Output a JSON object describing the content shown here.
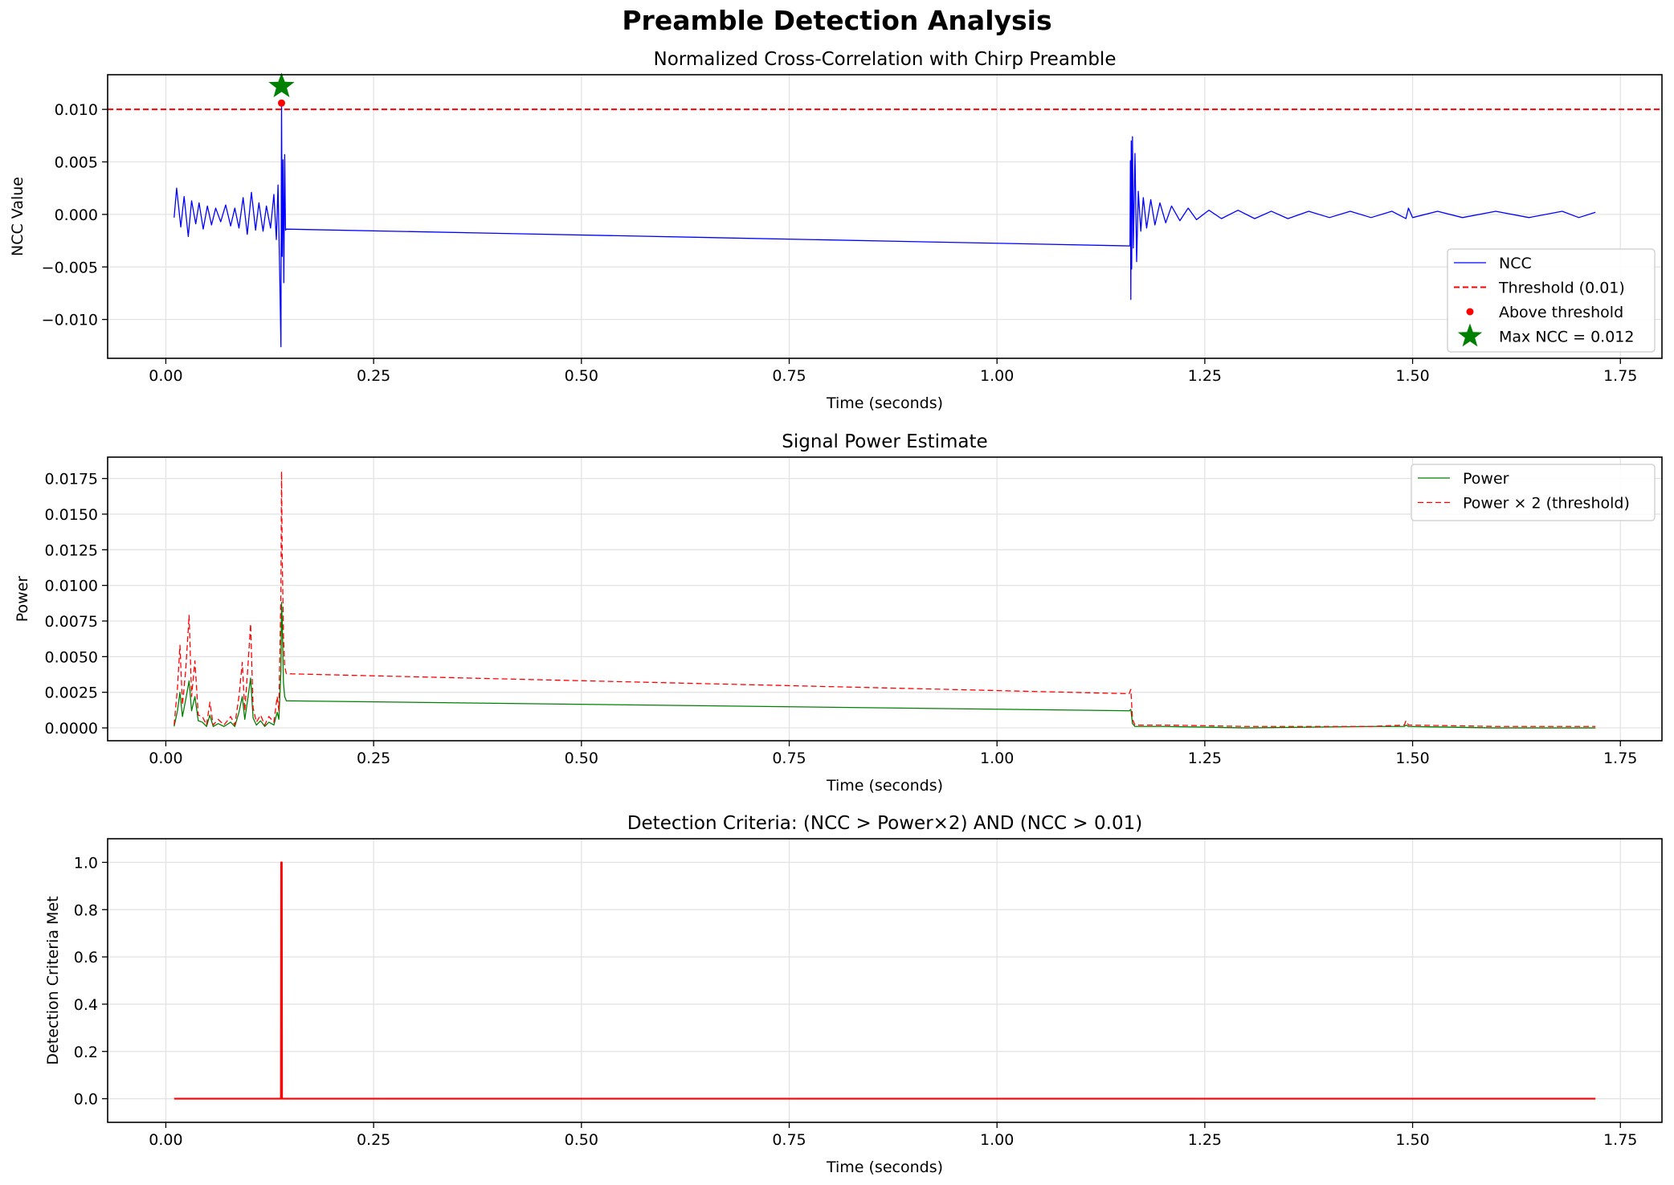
{
  "figure": {
    "title": "Preamble Detection Analysis"
  },
  "chart_data": [
    {
      "type": "line",
      "title": "Normalized Cross-Correlation with Chirp Preamble",
      "xlabel": "Time (seconds)",
      "ylabel": "NCC Value",
      "xlim": [
        -0.07,
        1.8
      ],
      "ylim": [
        -0.0137,
        0.0133
      ],
      "xticks": [
        0.0,
        0.25,
        0.5,
        0.75,
        1.0,
        1.25,
        1.5,
        1.75
      ],
      "xtick_labels": [
        "0.00",
        "0.25",
        "0.50",
        "0.75",
        "1.00",
        "1.25",
        "1.50",
        "1.75"
      ],
      "yticks": [
        -0.01,
        -0.005,
        0.0,
        0.005,
        0.01
      ],
      "ytick_labels": [
        "−0.010",
        "−0.005",
        "0.000",
        "0.005",
        "0.010"
      ],
      "grid": true,
      "legend_position": "lower-right",
      "series": [
        {
          "name": "NCC",
          "kind": "line",
          "color": "#0000ff",
          "points": [
            [
              0.01,
              -0.0003
            ],
            [
              0.013,
              0.0025
            ],
            [
              0.018,
              -0.0012
            ],
            [
              0.022,
              0.0017
            ],
            [
              0.027,
              -0.0021
            ],
            [
              0.031,
              0.0013
            ],
            [
              0.036,
              -0.0009
            ],
            [
              0.04,
              0.0011
            ],
            [
              0.045,
              -0.0014
            ],
            [
              0.05,
              0.0008
            ],
            [
              0.055,
              -0.001
            ],
            [
              0.06,
              0.0006
            ],
            [
              0.066,
              -0.0007
            ],
            [
              0.072,
              0.0009
            ],
            [
              0.078,
              -0.0011
            ],
            [
              0.083,
              0.0006
            ],
            [
              0.088,
              -0.0013
            ],
            [
              0.093,
              0.0016
            ],
            [
              0.098,
              -0.0019
            ],
            [
              0.103,
              0.0021
            ],
            [
              0.108,
              -0.0015
            ],
            [
              0.112,
              0.0011
            ],
            [
              0.117,
              -0.0016
            ],
            [
              0.121,
              0.0008
            ],
            [
              0.126,
              -0.0013
            ],
            [
              0.13,
              0.0019
            ],
            [
              0.133,
              -0.0024
            ],
            [
              0.135,
              0.0028
            ],
            [
              0.137,
              -0.0055
            ],
            [
              0.1385,
              -0.0126
            ],
            [
              0.1392,
              0.0108
            ],
            [
              0.14,
              -0.004
            ],
            [
              0.141,
              0.0052
            ],
            [
              0.142,
              -0.0065
            ],
            [
              0.143,
              0.0057
            ],
            [
              0.144,
              -0.0015
            ],
            [
              0.145,
              -0.0014
            ],
            [
              1.16,
              -0.003
            ],
            [
              1.1605,
              0.0051
            ],
            [
              1.161,
              -0.0081
            ],
            [
              1.1615,
              0.007
            ],
            [
              1.162,
              -0.0052
            ],
            [
              1.163,
              0.0074
            ],
            [
              1.164,
              -0.0032
            ],
            [
              1.166,
              0.0058
            ],
            [
              1.168,
              -0.0045
            ],
            [
              1.17,
              0.0022
            ],
            [
              1.173,
              -0.0016
            ],
            [
              1.176,
              0.0016
            ],
            [
              1.18,
              -0.0013
            ],
            [
              1.185,
              0.0014
            ],
            [
              1.19,
              -0.001
            ],
            [
              1.196,
              0.0011
            ],
            [
              1.203,
              -0.0008
            ],
            [
              1.21,
              0.0008
            ],
            [
              1.22,
              -0.0006
            ],
            [
              1.23,
              0.0006
            ],
            [
              1.24,
              -0.0005
            ],
            [
              1.255,
              0.0004
            ],
            [
              1.27,
              -0.0004
            ],
            [
              1.29,
              0.0004
            ],
            [
              1.31,
              -0.0004
            ],
            [
              1.33,
              0.0003
            ],
            [
              1.35,
              -0.0004
            ],
            [
              1.375,
              0.0003
            ],
            [
              1.4,
              -0.0003
            ],
            [
              1.425,
              0.0003
            ],
            [
              1.45,
              -0.0003
            ],
            [
              1.475,
              0.0003
            ],
            [
              1.492,
              -0.0004
            ],
            [
              1.495,
              0.0006
            ],
            [
              1.5,
              -0.0003
            ],
            [
              1.53,
              0.0003
            ],
            [
              1.56,
              -0.0003
            ],
            [
              1.6,
              0.0003
            ],
            [
              1.64,
              -0.0003
            ],
            [
              1.68,
              0.0003
            ],
            [
              1.7,
              -0.0003
            ],
            [
              1.72,
              0.0002
            ]
          ]
        },
        {
          "name": "Threshold (0.01)",
          "kind": "hline",
          "y": 0.01,
          "color": "#ff0000",
          "dash": true
        },
        {
          "name": "Above threshold",
          "kind": "scatter",
          "color": "#ff0000",
          "points": [
            [
              0.1392,
              0.0106
            ]
          ]
        },
        {
          "name": "Max NCC = 0.012",
          "kind": "star",
          "color": "#008000",
          "points": [
            [
              0.1392,
              0.0122
            ]
          ]
        }
      ]
    },
    {
      "type": "line",
      "title": "Signal Power Estimate",
      "xlabel": "Time (seconds)",
      "ylabel": "Power",
      "xlim": [
        -0.07,
        1.8
      ],
      "ylim": [
        -0.0009,
        0.019
      ],
      "xticks": [
        0.0,
        0.25,
        0.5,
        0.75,
        1.0,
        1.25,
        1.5,
        1.75
      ],
      "xtick_labels": [
        "0.00",
        "0.25",
        "0.50",
        "0.75",
        "1.00",
        "1.25",
        "1.50",
        "1.75"
      ],
      "yticks": [
        0.0,
        0.0025,
        0.005,
        0.0075,
        0.01,
        0.0125,
        0.015,
        0.0175
      ],
      "ytick_labels": [
        "0.0000",
        "0.0025",
        "0.0050",
        "0.0075",
        "0.0100",
        "0.0125",
        "0.0150",
        "0.0175"
      ],
      "grid": true,
      "legend_position": "top-right",
      "series": [
        {
          "name": "Power",
          "kind": "line",
          "color": "#008000",
          "points": [
            [
              0.01,
              0.0001
            ],
            [
              0.014,
              0.0012
            ],
            [
              0.017,
              0.0025
            ],
            [
              0.02,
              0.0008
            ],
            [
              0.024,
              0.002
            ],
            [
              0.028,
              0.0033
            ],
            [
              0.031,
              0.0012
            ],
            [
              0.035,
              0.0022
            ],
            [
              0.039,
              0.0005
            ],
            [
              0.044,
              0.0004
            ],
            [
              0.049,
              0.0001
            ],
            [
              0.053,
              0.0009
            ],
            [
              0.057,
              0.0001
            ],
            [
              0.063,
              0.0003
            ],
            [
              0.07,
              0.0001
            ],
            [
              0.078,
              0.0004
            ],
            [
              0.083,
              0.0001
            ],
            [
              0.088,
              0.0011
            ],
            [
              0.092,
              0.0022
            ],
            [
              0.095,
              0.0006
            ],
            [
              0.099,
              0.0022
            ],
            [
              0.102,
              0.0035
            ],
            [
              0.105,
              0.0007
            ],
            [
              0.109,
              0.0002
            ],
            [
              0.114,
              0.0005
            ],
            [
              0.119,
              0.0001
            ],
            [
              0.124,
              0.0004
            ],
            [
              0.13,
              0.0002
            ],
            [
              0.134,
              0.0011
            ],
            [
              0.136,
              0.0006
            ],
            [
              0.1385,
              0.004
            ],
            [
              0.1392,
              0.0088
            ],
            [
              0.14,
              0.0075
            ],
            [
              0.1415,
              0.0032
            ],
            [
              0.143,
              0.0022
            ],
            [
              0.145,
              0.0019
            ],
            [
              1.159,
              0.0012
            ],
            [
              1.161,
              0.0013
            ],
            [
              1.163,
              0.0003
            ],
            [
              1.166,
              0.0001
            ],
            [
              1.2,
              0.0001
            ],
            [
              1.3,
              0.0
            ],
            [
              1.45,
              0.0001
            ],
            [
              1.49,
              0.0001
            ],
            [
              1.492,
              0.0002
            ],
            [
              1.495,
              0.0001
            ],
            [
              1.6,
              0.0
            ],
            [
              1.72,
              0.0
            ]
          ]
        },
        {
          "name": "Power × 2 (threshold)",
          "kind": "line",
          "color": "#ff0000",
          "dash": true,
          "points": [
            [
              0.01,
              0.0002
            ],
            [
              0.014,
              0.0028
            ],
            [
              0.017,
              0.0058
            ],
            [
              0.02,
              0.0016
            ],
            [
              0.024,
              0.0041
            ],
            [
              0.028,
              0.0079
            ],
            [
              0.031,
              0.0022
            ],
            [
              0.035,
              0.0047
            ],
            [
              0.039,
              0.0009
            ],
            [
              0.044,
              0.0008
            ],
            [
              0.049,
              0.0002
            ],
            [
              0.053,
              0.0018
            ],
            [
              0.057,
              0.0002
            ],
            [
              0.063,
              0.0006
            ],
            [
              0.07,
              0.0002
            ],
            [
              0.078,
              0.0008
            ],
            [
              0.083,
              0.0002
            ],
            [
              0.088,
              0.0022
            ],
            [
              0.092,
              0.0046
            ],
            [
              0.095,
              0.0012
            ],
            [
              0.099,
              0.0045
            ],
            [
              0.102,
              0.0073
            ],
            [
              0.105,
              0.0014
            ],
            [
              0.109,
              0.0004
            ],
            [
              0.114,
              0.0009
            ],
            [
              0.119,
              0.0002
            ],
            [
              0.124,
              0.0008
            ],
            [
              0.13,
              0.0004
            ],
            [
              0.134,
              0.0022
            ],
            [
              0.136,
              0.0012
            ],
            [
              0.1385,
              0.0095
            ],
            [
              0.1392,
              0.018
            ],
            [
              0.14,
              0.0123
            ],
            [
              0.1415,
              0.0065
            ],
            [
              0.143,
              0.0043
            ],
            [
              0.145,
              0.0038
            ],
            [
              1.159,
              0.0024
            ],
            [
              1.161,
              0.0027
            ],
            [
              1.163,
              0.0006
            ],
            [
              1.166,
              0.0002
            ],
            [
              1.2,
              0.0002
            ],
            [
              1.3,
              0.0001
            ],
            [
              1.45,
              0.0001
            ],
            [
              1.49,
              0.0002
            ],
            [
              1.492,
              0.0005
            ],
            [
              1.495,
              0.0002
            ],
            [
              1.6,
              0.0001
            ],
            [
              1.72,
              0.0001
            ]
          ]
        }
      ]
    },
    {
      "type": "line",
      "title": "Detection Criteria: (NCC > Power×2) AND (NCC > 0.01)",
      "xlabel": "Time (seconds)",
      "ylabel": "Detection Criteria Met",
      "xlim": [
        -0.07,
        1.8
      ],
      "ylim": [
        -0.1,
        1.1
      ],
      "xticks": [
        0.0,
        0.25,
        0.5,
        0.75,
        1.0,
        1.25,
        1.5,
        1.75
      ],
      "xtick_labels": [
        "0.00",
        "0.25",
        "0.50",
        "0.75",
        "1.00",
        "1.25",
        "1.50",
        "1.75"
      ],
      "yticks": [
        0.0,
        0.2,
        0.4,
        0.6,
        0.8,
        1.0
      ],
      "ytick_labels": [
        "0.0",
        "0.2",
        "0.4",
        "0.6",
        "0.8",
        "1.0"
      ],
      "grid": true,
      "series": [
        {
          "kind": "line",
          "color": "#ff0000",
          "points": [
            [
              0.01,
              0.0
            ],
            [
              0.1385,
              0.0
            ],
            [
              0.1388,
              1.0
            ],
            [
              0.1395,
              1.0
            ],
            [
              0.1398,
              0.0
            ],
            [
              1.72,
              0.0
            ]
          ]
        }
      ]
    }
  ]
}
